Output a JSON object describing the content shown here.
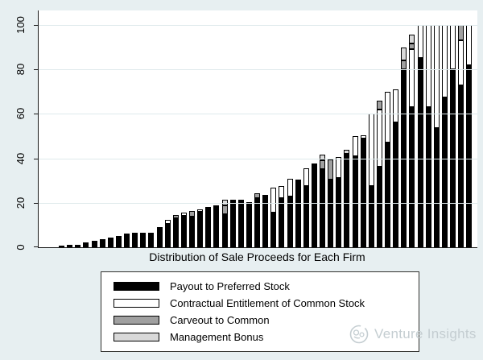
{
  "chart_data": {
    "type": "bar",
    "stacked": true,
    "title": "",
    "xlabel": "Distribution of Sale Proceeds for Each Firm",
    "ylabel": "",
    "ylim": [
      0,
      105
    ],
    "yticks": [
      0,
      20,
      40,
      60,
      80,
      100
    ],
    "grid": true,
    "legend_position": "bottom",
    "series_order": [
      "preferred",
      "common",
      "carveout",
      "bonus"
    ],
    "series_names": {
      "preferred": "Payout to Preferred Stock",
      "common": "Contractual Entitlement of Common Stock",
      "carveout": "Carveout to Common",
      "bonus": "Management Bonus"
    },
    "x_unit": "firm (one bar per firm, unlabeled)",
    "bars": [
      {
        "preferred": 0.5,
        "common": 0,
        "carveout": 0,
        "bonus": 0
      },
      {
        "preferred": 1,
        "common": 0,
        "carveout": 0,
        "bonus": 0
      },
      {
        "preferred": 1,
        "common": 0,
        "carveout": 0,
        "bonus": 0
      },
      {
        "preferred": 2,
        "common": 0,
        "carveout": 0,
        "bonus": 0
      },
      {
        "preferred": 3,
        "common": 0,
        "carveout": 0,
        "bonus": 0
      },
      {
        "preferred": 3.5,
        "common": 0,
        "carveout": 0,
        "bonus": 0
      },
      {
        "preferred": 4.5,
        "common": 0,
        "carveout": 0,
        "bonus": 0
      },
      {
        "preferred": 5,
        "common": 0,
        "carveout": 0,
        "bonus": 0
      },
      {
        "preferred": 6.3,
        "common": 0,
        "carveout": 0,
        "bonus": 0
      },
      {
        "preferred": 6.5,
        "common": 0,
        "carveout": 0,
        "bonus": 0
      },
      {
        "preferred": 6.5,
        "common": 0,
        "carveout": 0,
        "bonus": 0
      },
      {
        "preferred": 6.5,
        "common": 0,
        "carveout": 0,
        "bonus": 0
      },
      {
        "preferred": 9.2,
        "common": 0,
        "carveout": 0,
        "bonus": 0
      },
      {
        "preferred": 10.5,
        "common": 2,
        "carveout": 0,
        "bonus": 0
      },
      {
        "preferred": 13,
        "common": 0,
        "carveout": 1.5,
        "bonus": 0
      },
      {
        "preferred": 14.3,
        "common": 1.2,
        "carveout": 0,
        "bonus": 0
      },
      {
        "preferred": 13.8,
        "common": 0,
        "carveout": 2.6,
        "bonus": 0
      },
      {
        "preferred": 16,
        "common": 1,
        "carveout": 0,
        "bonus": 0
      },
      {
        "preferred": 18.3,
        "common": 0,
        "carveout": 0,
        "bonus": 0
      },
      {
        "preferred": 18.8,
        "common": 0,
        "carveout": 0,
        "bonus": 0
      },
      {
        "preferred": 15,
        "common": 0,
        "carveout": 4,
        "bonus": 2.5
      },
      {
        "preferred": 20.5,
        "common": 1,
        "carveout": 0,
        "bonus": 0
      },
      {
        "preferred": 20.5,
        "common": 1,
        "carveout": 0,
        "bonus": 0
      },
      {
        "preferred": 20.3,
        "common": 0,
        "carveout": 0,
        "bonus": 0
      },
      {
        "preferred": 22,
        "common": 0,
        "carveout": 2.3,
        "bonus": 0
      },
      {
        "preferred": 23.6,
        "common": 0,
        "carveout": 0,
        "bonus": 0
      },
      {
        "preferred": 15.5,
        "common": 11.5,
        "carveout": 0,
        "bonus": 0
      },
      {
        "preferred": 22,
        "common": 5.5,
        "carveout": 0,
        "bonus": 0
      },
      {
        "preferred": 22.7,
        "common": 8.1,
        "carveout": 0,
        "bonus": 0
      },
      {
        "preferred": 30.6,
        "common": 0,
        "carveout": 0,
        "bonus": 0
      },
      {
        "preferred": 27.6,
        "common": 7.8,
        "carveout": 0,
        "bonus": 0
      },
      {
        "preferred": 36.8,
        "common": 1,
        "carveout": 0,
        "bonus": 0
      },
      {
        "preferred": 35,
        "common": 0,
        "carveout": 4,
        "bonus": 2.5
      },
      {
        "preferred": 30.5,
        "common": 0,
        "carveout": 9,
        "bonus": 0
      },
      {
        "preferred": 31.2,
        "common": 9.3,
        "carveout": 0,
        "bonus": 0
      },
      {
        "preferred": 42,
        "common": 0,
        "carveout": 0,
        "bonus": 2
      },
      {
        "preferred": 41,
        "common": 9,
        "carveout": 0,
        "bonus": 0
      },
      {
        "preferred": 48.9,
        "common": 1.5,
        "carveout": 0,
        "bonus": 0
      },
      {
        "preferred": 27.5,
        "common": 32.5,
        "carveout": 0,
        "bonus": 0
      },
      {
        "preferred": 36.2,
        "common": 25.8,
        "carveout": 4,
        "bonus": 0
      },
      {
        "preferred": 47,
        "common": 23,
        "carveout": 0,
        "bonus": 0
      },
      {
        "preferred": 56,
        "common": 15,
        "carveout": 0,
        "bonus": 0
      },
      {
        "preferred": 80,
        "common": 0,
        "carveout": 4,
        "bonus": 6
      },
      {
        "preferred": 63,
        "common": 26,
        "carveout": 2.5,
        "bonus": 4
      },
      {
        "preferred": 85,
        "common": 15,
        "carveout": 0,
        "bonus": 0
      },
      {
        "preferred": 63,
        "common": 37,
        "carveout": 0,
        "bonus": 0
      },
      {
        "preferred": 53.5,
        "common": 46.5,
        "carveout": 0,
        "bonus": 0
      },
      {
        "preferred": 67.5,
        "common": 32.5,
        "carveout": 0,
        "bonus": 0
      },
      {
        "preferred": 80,
        "common": 20,
        "carveout": 0,
        "bonus": 0
      },
      {
        "preferred": 73,
        "common": 20,
        "carveout": 7,
        "bonus": 0
      },
      {
        "preferred": 82,
        "common": 18,
        "carveout": 0,
        "bonus": 0
      }
    ]
  },
  "legend": {
    "items": [
      {
        "key": "preferred",
        "label": "Payout to Preferred Stock",
        "color": "#000000"
      },
      {
        "key": "common",
        "label": "Contractual Entitlement of Common Stock",
        "color": "#ffffff"
      },
      {
        "key": "carveout",
        "label": "Carveout to Common",
        "color": "#a0a0a0"
      },
      {
        "key": "bonus",
        "label": "Management Bonus",
        "color": "#d9d9d9"
      }
    ]
  },
  "watermark": {
    "text": "Venture Insights"
  },
  "colors": {
    "background": "#e7eff1",
    "plot_background": "#ffffff",
    "gridline": "#dfeaec",
    "axis": "#1a1a1a",
    "preferred": "#000000",
    "common": "#ffffff",
    "carveout": "#a0a0a0",
    "bonus": "#d9d9d9",
    "watermark_text": "#c4cdd1"
  }
}
